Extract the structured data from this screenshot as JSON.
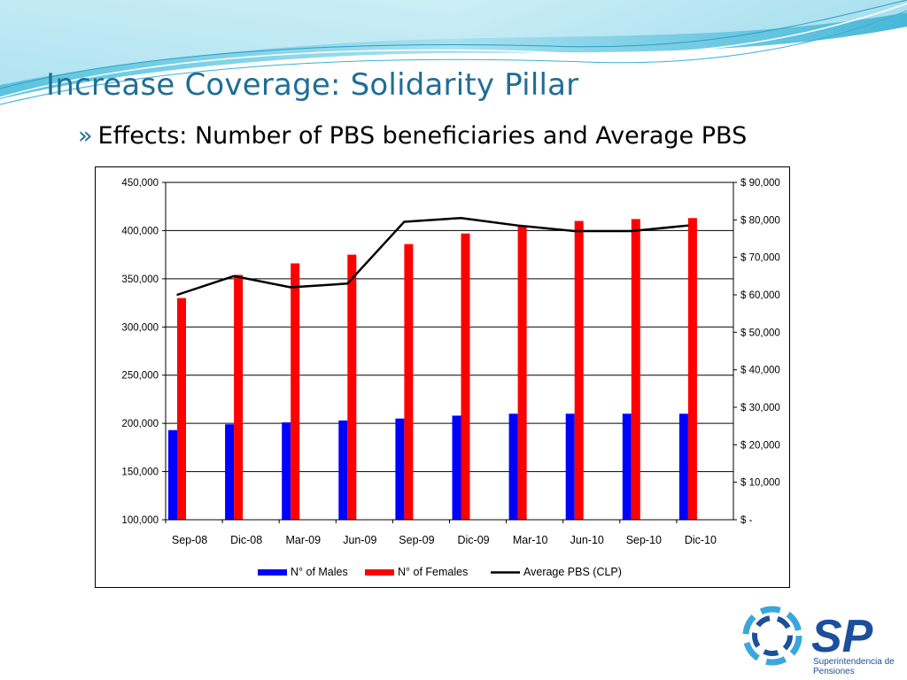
{
  "slide": {
    "title": "Increase Coverage: Solidarity Pillar",
    "subtitle_bullet": "»",
    "subtitle": "Effects: Number of PBS beneficiaries and Average PBS"
  },
  "logo": {
    "mark": "SP",
    "text_line1": "Superintendencia de",
    "text_line2": "Pensiones"
  },
  "chart_data": {
    "type": "bar",
    "categories": [
      "Sep-08",
      "Dic-08",
      "Mar-09",
      "Jun-09",
      "Sep-09",
      "Dic-09",
      "Mar-10",
      "Jun-10",
      "Sep-10",
      "Dic-10"
    ],
    "series": [
      {
        "name": "N° of Males",
        "type": "bar",
        "axis": "left",
        "color": "#0000ff",
        "values": [
          193000,
          199000,
          201000,
          203000,
          205000,
          208000,
          210000,
          210000,
          210000,
          210000
        ]
      },
      {
        "name": "N° of Females",
        "type": "bar",
        "axis": "left",
        "color": "#ff0000",
        "values": [
          330000,
          354000,
          366000,
          375000,
          386000,
          397000,
          405000,
          410000,
          412000,
          413000
        ]
      },
      {
        "name": "Average PBS (CLP)",
        "type": "line",
        "axis": "right",
        "color": "#000000",
        "values": [
          60000,
          65000,
          62000,
          63000,
          79500,
          80500,
          78500,
          77000,
          77000,
          78500
        ]
      }
    ],
    "y_left": {
      "min": 100000,
      "max": 450000,
      "step": 50000,
      "ticks": [
        "100,000",
        "150,000",
        "200,000",
        "250,000",
        "300,000",
        "350,000",
        "400,000",
        "450,000"
      ]
    },
    "y_right": {
      "min": 0,
      "max": 90000,
      "step": 10000,
      "ticks": [
        "$ -",
        "$ 10,000",
        "$ 20,000",
        "$ 30,000",
        "$ 40,000",
        "$ 50,000",
        "$ 60,000",
        "$ 70,000",
        "$ 80,000",
        "$ 90,000"
      ]
    },
    "grid": "horizontal",
    "legend": "bottom"
  }
}
